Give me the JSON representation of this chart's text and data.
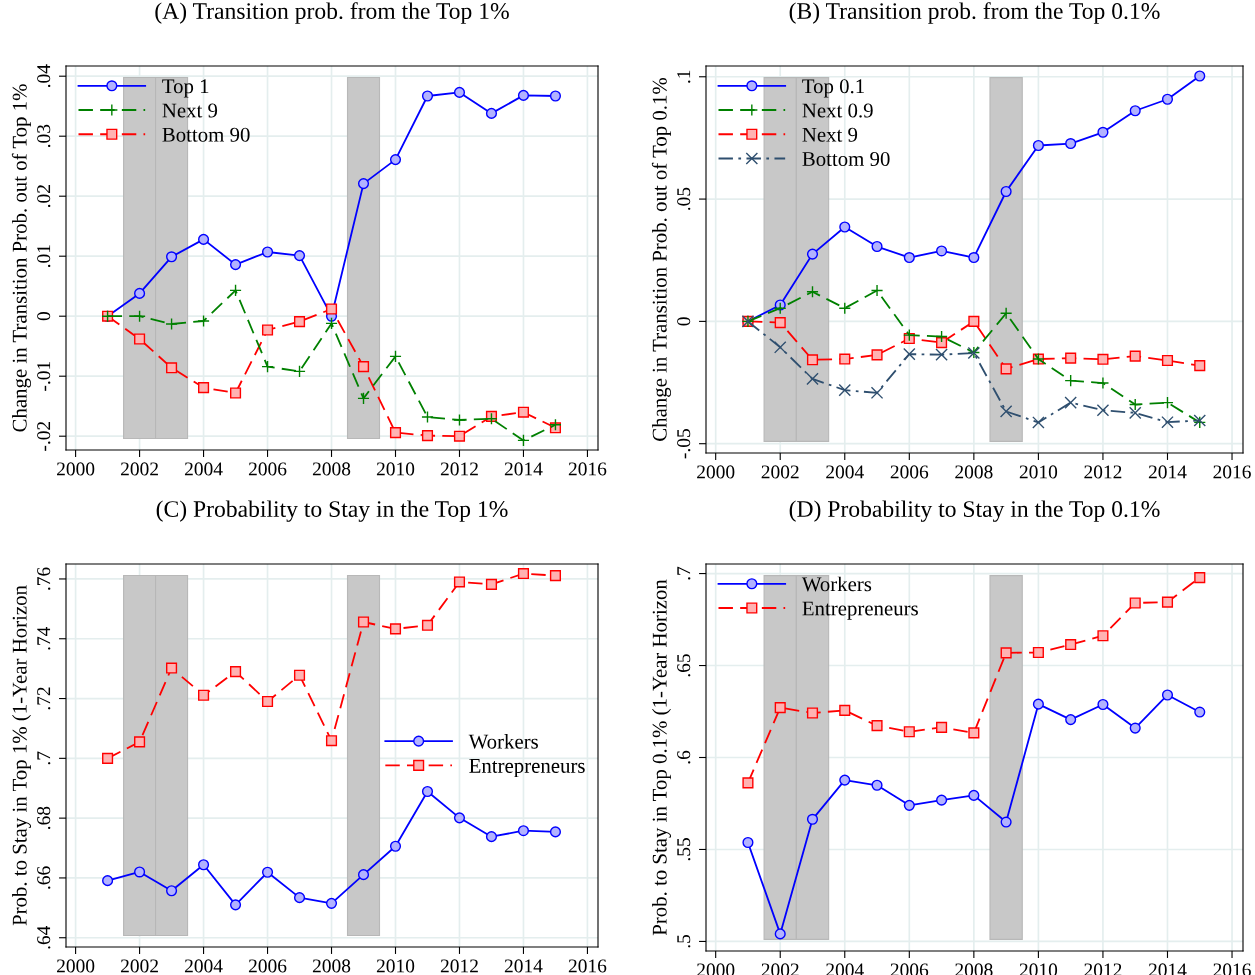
{
  "chart_data": [
    {
      "type": "line",
      "title": "(A) Transition prob. from the Top 1%",
      "ylabel": "Change in Transition Prob. out of Top 1%",
      "x": [
        2001,
        2002,
        2003,
        2004,
        2005,
        2006,
        2007,
        2008,
        2009,
        2010,
        2011,
        2012,
        2013,
        2014,
        2015
      ],
      "xlim": [
        1999.7,
        2016.33
      ],
      "xticks": [
        2000,
        2002,
        2004,
        2006,
        2008,
        2010,
        2012,
        2014,
        2016
      ],
      "ylim": [
        -0.0223,
        0.0417
      ],
      "yticks": [
        {
          "value": -0.02,
          "label": "-.02"
        },
        {
          "value": -0.01,
          "label": "-.01"
        },
        0,
        {
          "value": 0.01,
          "label": ".01"
        },
        {
          "value": 0.02,
          "label": ".02"
        },
        {
          "value": 0.03,
          "label": ".03"
        },
        {
          "value": 0.04,
          "label": ".04"
        }
      ],
      "grid": true,
      "legend": "top left",
      "bands": [
        {
          "axis": "x",
          "from": 2001.5,
          "to": 2002.5,
          "color": "#c8c8c8"
        },
        {
          "axis": "x",
          "from": 2002.5,
          "to": 2003.5,
          "color": "#c8c8c8"
        },
        {
          "axis": "x",
          "from": 2008.5,
          "to": 2009.5,
          "color": "#c8c8c8"
        }
      ],
      "series": [
        {
          "name": "Top 1",
          "color": "#0000ff",
          "marker": "circle",
          "line_style": "solid",
          "values": [
            0,
            0.0038,
            0.0099,
            0.0128,
            0.0086,
            0.0107,
            0.0101,
            0,
            0.0221,
            0.0261,
            0.0367,
            0.0373,
            0.0338,
            0.0368,
            0.0367
          ]
        },
        {
          "name": "Next 9",
          "color": "#008000",
          "marker": "plus",
          "line_style": "dashed",
          "values": [
            0,
            0,
            -0.0013,
            -0.0008,
            0.0043,
            -0.0084,
            -0.0092,
            -0.0012,
            -0.0137,
            -0.0067,
            -0.0168,
            -0.0173,
            -0.0171,
            -0.0207,
            -0.0181
          ]
        },
        {
          "name": "Bottom 90",
          "color": "#ff0000",
          "marker": "square",
          "line_style": "dashed",
          "values": [
            0,
            -0.0038,
            -0.0086,
            -0.0119,
            -0.0128,
            -0.0023,
            -0.0009,
            0.0012,
            -0.0084,
            -0.0194,
            -0.0199,
            -0.02,
            -0.0167,
            -0.016,
            -0.0186
          ]
        }
      ]
    },
    {
      "type": "line",
      "title": "(B) Transition prob. from the Top 0.1%",
      "ylabel": "Change in Transition Prob. out of Top 0.1%",
      "x": [
        2001,
        2002,
        2003,
        2004,
        2005,
        2006,
        2007,
        2008,
        2009,
        2010,
        2011,
        2012,
        2013,
        2014,
        2015
      ],
      "xlim": [
        1999.7,
        2016.34
      ],
      "xticks": [
        2000,
        2002,
        2004,
        2006,
        2008,
        2010,
        2012,
        2014,
        2016
      ],
      "ylim": [
        -0.0538,
        0.1044
      ],
      "yticks": [
        {
          "value": -0.05,
          "label": "-.05"
        },
        0,
        {
          "value": 0.05,
          "label": ".05"
        },
        {
          "value": 0.1,
          "label": ".1"
        }
      ],
      "grid": true,
      "legend": "top left",
      "bands": [
        {
          "axis": "x",
          "from": 2001.5,
          "to": 2002.5,
          "color": "#c8c8c8"
        },
        {
          "axis": "x",
          "from": 2002.5,
          "to": 2003.5,
          "color": "#c8c8c8"
        },
        {
          "axis": "x",
          "from": 2008.5,
          "to": 2009.5,
          "color": "#c8c8c8"
        }
      ],
      "series": [
        {
          "name": "Top 0.1",
          "color": "#0000ff",
          "marker": "circle",
          "line_style": "solid",
          "values": [
            0,
            0.0067,
            0.0275,
            0.0386,
            0.0306,
            0.0261,
            0.0288,
            0.0261,
            0.0531,
            0.0719,
            0.0727,
            0.0773,
            0.0861,
            0.0908,
            0.1003
          ]
        },
        {
          "name": "Next 0.9",
          "color": "#008000",
          "marker": "plus",
          "line_style": "dashed",
          "values": [
            0,
            0.0054,
            0.0121,
            0.0054,
            0.0126,
            -0.0056,
            -0.0062,
            -0.0127,
            0.0033,
            -0.0154,
            -0.0242,
            -0.0252,
            -0.034,
            -0.0332,
            -0.0413
          ]
        },
        {
          "name": "Next 9",
          "color": "#ff0000",
          "marker": "square",
          "line_style": "dashed",
          "values": [
            0,
            -0.0005,
            -0.0157,
            -0.0154,
            -0.0137,
            -0.007,
            -0.0087,
            0,
            -0.0194,
            -0.0154,
            -0.015,
            -0.0155,
            -0.0142,
            -0.016,
            -0.0181
          ]
        },
        {
          "name": "Bottom 90",
          "color": "#2f4f6f",
          "marker": "cross",
          "line_style": "dashdot",
          "values": [
            0,
            -0.0106,
            -0.0235,
            -0.0281,
            -0.0292,
            -0.0134,
            -0.0136,
            -0.0129,
            -0.0368,
            -0.0413,
            -0.0332,
            -0.0363,
            -0.0374,
            -0.0412,
            -0.0405
          ]
        }
      ]
    },
    {
      "type": "line",
      "title": "(C) Probability to Stay in the Top 1%",
      "ylabel": "Prob. to Stay in Top 1% (1-Year Horizon",
      "x": [
        2001,
        2002,
        2003,
        2004,
        2005,
        2006,
        2007,
        2008,
        2009,
        2010,
        2011,
        2012,
        2013,
        2014,
        2015
      ],
      "xlim": [
        1999.7,
        2016.33
      ],
      "xticks": [
        2000,
        2002,
        2004,
        2006,
        2008,
        2010,
        2012,
        2014,
        2016
      ],
      "ylim": [
        0.6369,
        0.765
      ],
      "yticks": [
        {
          "value": 0.64,
          "label": ".64"
        },
        {
          "value": 0.66,
          "label": ".66"
        },
        {
          "value": 0.68,
          "label": ".68"
        },
        {
          "value": 0.7,
          "label": ".7"
        },
        {
          "value": 0.72,
          "label": ".72"
        },
        {
          "value": 0.74,
          "label": ".74"
        },
        {
          "value": 0.76,
          "label": ".76"
        }
      ],
      "grid": true,
      "legend": "right",
      "bands": [
        {
          "axis": "x",
          "from": 2001.5,
          "to": 2002.5,
          "color": "#c8c8c8"
        },
        {
          "axis": "x",
          "from": 2002.5,
          "to": 2003.5,
          "color": "#c8c8c8"
        },
        {
          "axis": "x",
          "from": 2008.5,
          "to": 2009.5,
          "color": "#c8c8c8"
        }
      ],
      "series": [
        {
          "name": "Workers",
          "color": "#0000ff",
          "marker": "circle",
          "line_style": "solid",
          "values": [
            0.6591,
            0.662,
            0.6557,
            0.6644,
            0.651,
            0.6619,
            0.6534,
            0.6515,
            0.6611,
            0.6706,
            0.6889,
            0.6801,
            0.6738,
            0.6758,
            0.6754
          ]
        },
        {
          "name": "Entrepreneurs",
          "color": "#ff0000",
          "marker": "square",
          "line_style": "dashed",
          "values": [
            0.7,
            0.7055,
            0.7302,
            0.7211,
            0.729,
            0.719,
            0.7278,
            0.7059,
            0.7456,
            0.7433,
            0.7445,
            0.759,
            0.7582,
            0.7618,
            0.7611
          ]
        }
      ]
    },
    {
      "type": "line",
      "title": "(D) Probability to Stay in the Top 0.1%",
      "ylabel": "Prob. to Stay in Top 0.1% (1-Year Horizon",
      "x": [
        2001,
        2002,
        2003,
        2004,
        2005,
        2006,
        2007,
        2008,
        2009,
        2010,
        2011,
        2012,
        2013,
        2014,
        2015
      ],
      "xlim": [
        1999.7,
        2016.34
      ],
      "xticks": [
        2000,
        2002,
        2004,
        2006,
        2008,
        2010,
        2012,
        2014,
        2016
      ],
      "ylim": [
        0.4948,
        0.7052
      ],
      "yticks": [
        {
          "value": 0.5,
          "label": ".5"
        },
        {
          "value": 0.55,
          "label": ".55"
        },
        {
          "value": 0.6,
          "label": ".6"
        },
        {
          "value": 0.65,
          "label": ".65"
        },
        {
          "value": 0.7,
          "label": ".7"
        }
      ],
      "grid": true,
      "legend": "top left",
      "bands": [
        {
          "axis": "x",
          "from": 2001.5,
          "to": 2002.5,
          "color": "#c8c8c8"
        },
        {
          "axis": "x",
          "from": 2002.5,
          "to": 2003.5,
          "color": "#c8c8c8"
        },
        {
          "axis": "x",
          "from": 2008.5,
          "to": 2009.5,
          "color": "#c8c8c8"
        }
      ],
      "series": [
        {
          "name": "Workers",
          "color": "#0000ff",
          "marker": "circle",
          "line_style": "solid",
          "values": [
            0.5538,
            0.5041,
            0.5664,
            0.5877,
            0.5849,
            0.574,
            0.5768,
            0.5794,
            0.5649,
            0.629,
            0.6206,
            0.6288,
            0.616,
            0.634,
            0.6247
          ]
        },
        {
          "name": "Entrepreneurs",
          "color": "#ff0000",
          "marker": "square",
          "line_style": "dashed",
          "values": [
            0.5862,
            0.6271,
            0.6242,
            0.6256,
            0.6173,
            0.614,
            0.6164,
            0.6134,
            0.6569,
            0.6571,
            0.6614,
            0.6662,
            0.684,
            0.6845,
            0.6978
          ]
        }
      ]
    }
  ]
}
